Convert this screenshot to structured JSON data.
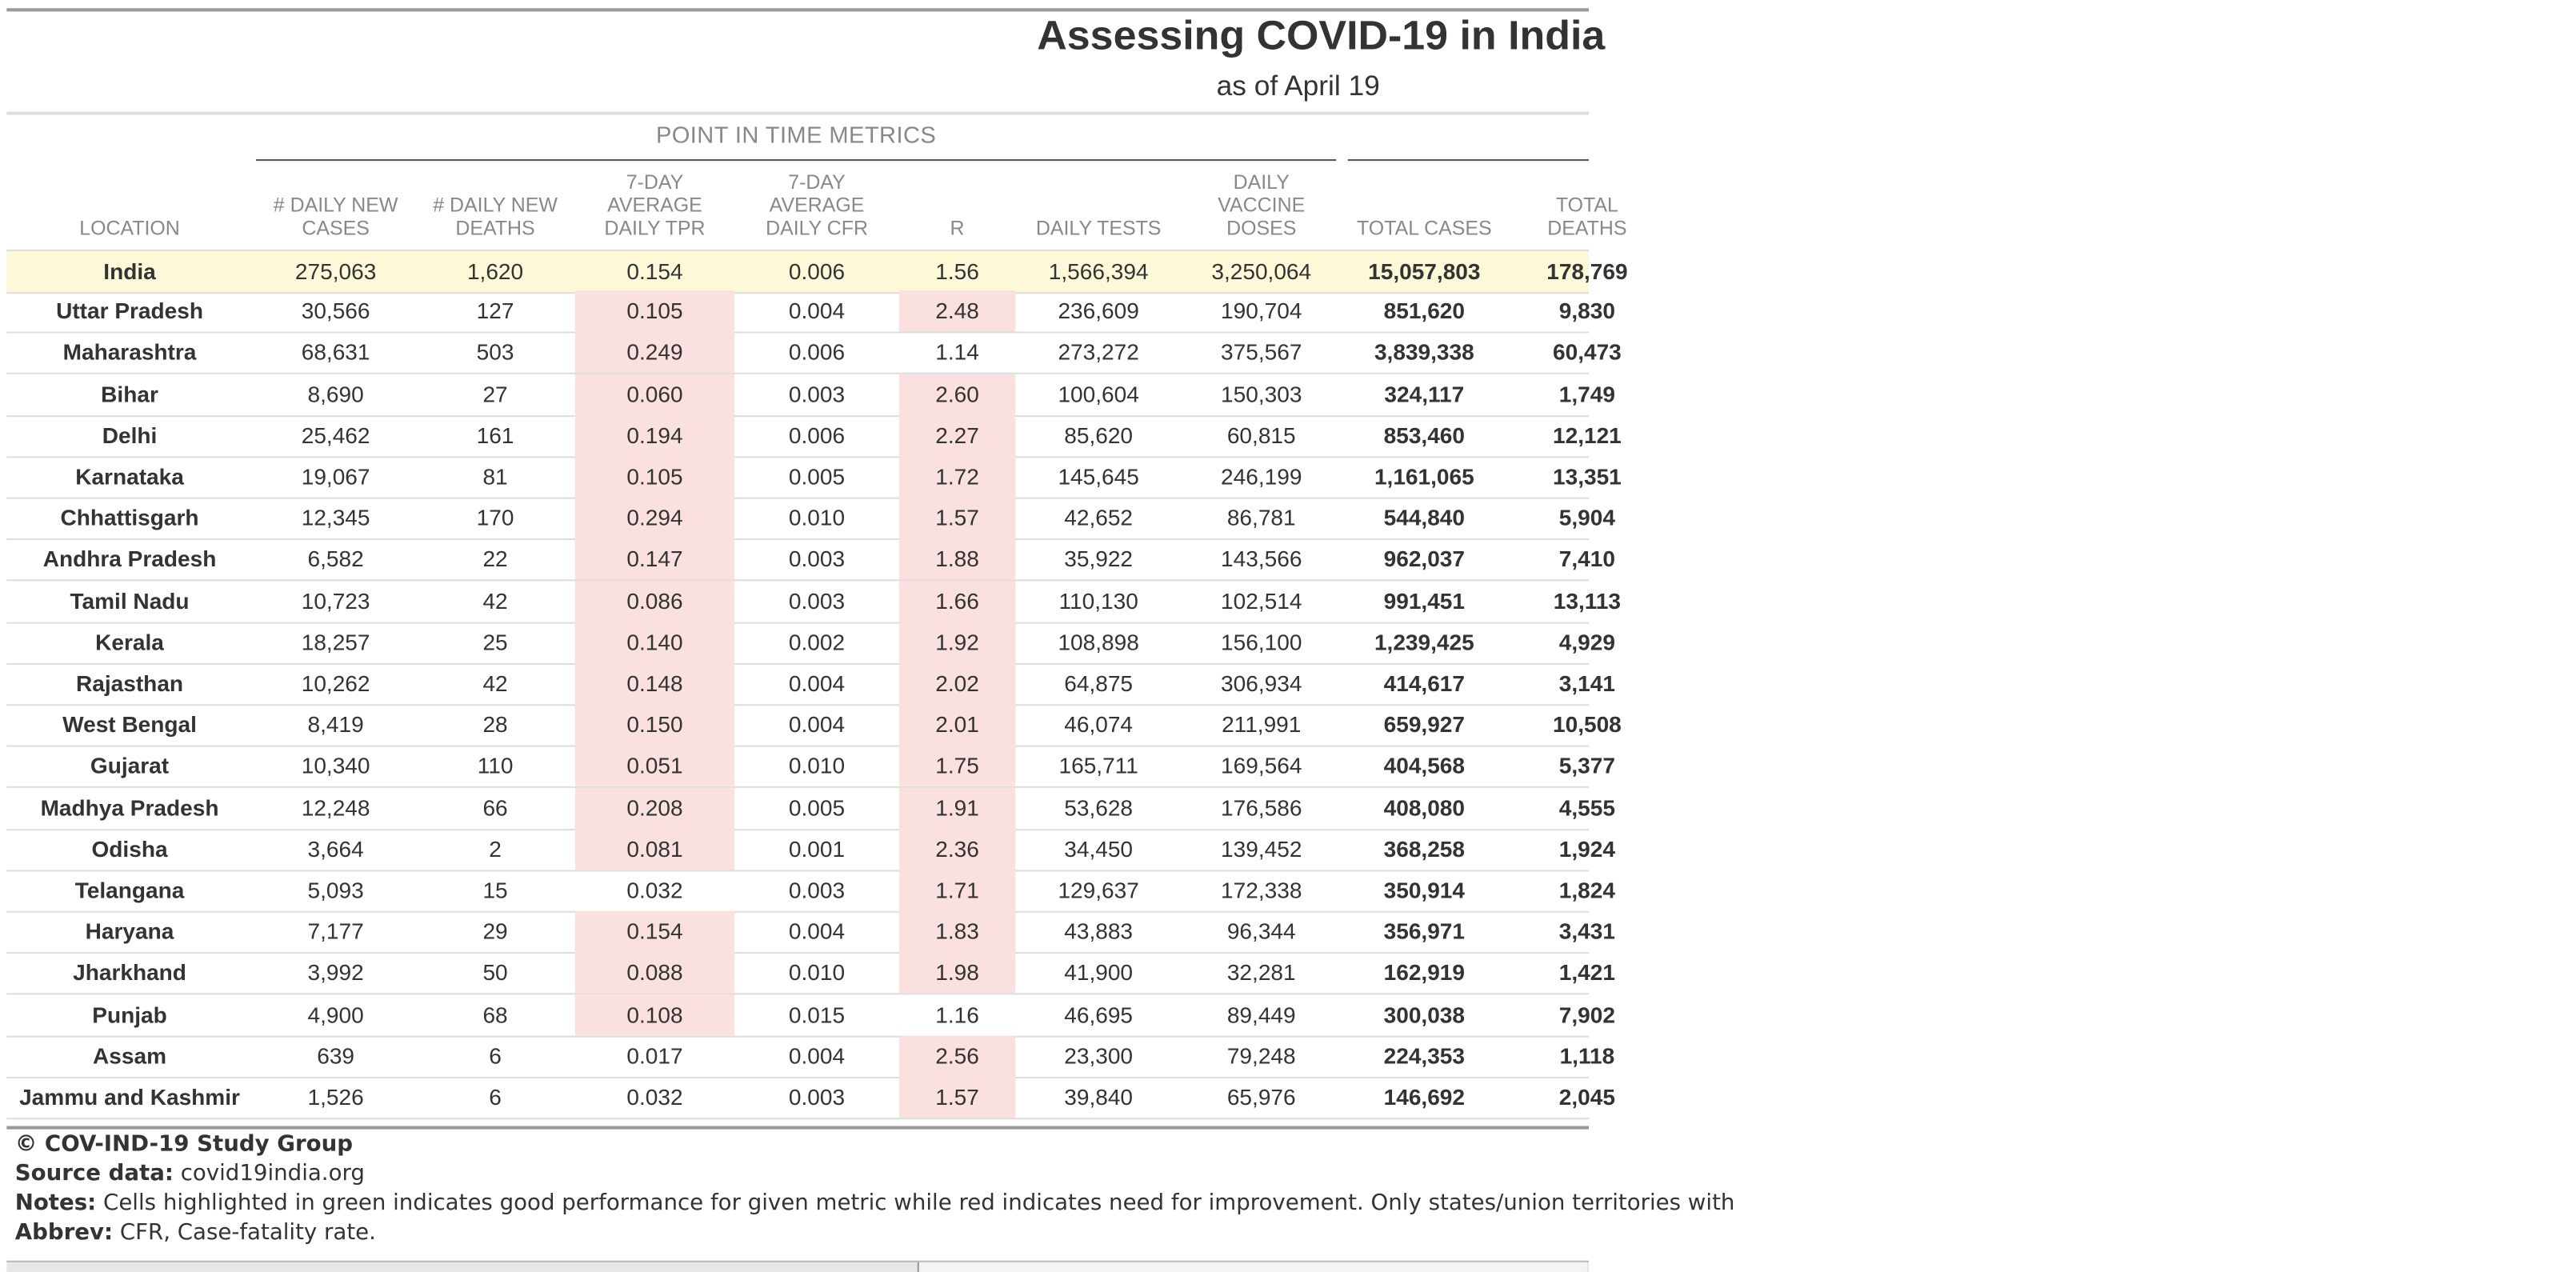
{
  "header": {
    "title": "Assessing COVID-19 in India",
    "subtitle": "as of April 19",
    "section_label": "POINT IN TIME METRICS"
  },
  "columns": [
    "LOCATION",
    "# DAILY NEW\nCASES",
    "# DAILY NEW\nDEATHS",
    "7-DAY\nAVERAGE\nDAILY TPR",
    "7-DAY\nAVERAGE\nDAILY CFR",
    "R",
    "DAILY TESTS",
    "DAILY\nVACCINE\nDOSES",
    "TOTAL CASES",
    "TOTAL\nDEATHS"
  ],
  "rows": [
    {
      "cells": [
        "India",
        "275,063",
        "1,620",
        "0.154",
        "0.006",
        "1.56",
        "1,566,394",
        "3,250,064",
        "15,057,803",
        "178,769"
      ],
      "highlight": true,
      "tpr_red": false,
      "r_red": false
    },
    {
      "cells": [
        "Uttar Pradesh",
        "30,566",
        "127",
        "0.105",
        "0.004",
        "2.48",
        "236,609",
        "190,704",
        "851,620",
        "9,830"
      ],
      "tpr_red": true,
      "r_red": true
    },
    {
      "cells": [
        "Maharashtra",
        "68,631",
        "503",
        "0.249",
        "0.006",
        "1.14",
        "273,272",
        "375,567",
        "3,839,338",
        "60,473"
      ],
      "tpr_red": true,
      "r_red": false
    },
    {
      "cells": [
        "Bihar",
        "8,690",
        "27",
        "0.060",
        "0.003",
        "2.60",
        "100,604",
        "150,303",
        "324,117",
        "1,749"
      ],
      "tpr_red": true,
      "r_red": true
    },
    {
      "cells": [
        "Delhi",
        "25,462",
        "161",
        "0.194",
        "0.006",
        "2.27",
        "85,620",
        "60,815",
        "853,460",
        "12,121"
      ],
      "tpr_red": true,
      "r_red": true
    },
    {
      "cells": [
        "Karnataka",
        "19,067",
        "81",
        "0.105",
        "0.005",
        "1.72",
        "145,645",
        "246,199",
        "1,161,065",
        "13,351"
      ],
      "tpr_red": true,
      "r_red": true
    },
    {
      "cells": [
        "Chhattisgarh",
        "12,345",
        "170",
        "0.294",
        "0.010",
        "1.57",
        "42,652",
        "86,781",
        "544,840",
        "5,904"
      ],
      "tpr_red": true,
      "r_red": true
    },
    {
      "cells": [
        "Andhra Pradesh",
        "6,582",
        "22",
        "0.147",
        "0.003",
        "1.88",
        "35,922",
        "143,566",
        "962,037",
        "7,410"
      ],
      "tpr_red": true,
      "r_red": true
    },
    {
      "cells": [
        "Tamil Nadu",
        "10,723",
        "42",
        "0.086",
        "0.003",
        "1.66",
        "110,130",
        "102,514",
        "991,451",
        "13,113"
      ],
      "tpr_red": true,
      "r_red": true
    },
    {
      "cells": [
        "Kerala",
        "18,257",
        "25",
        "0.140",
        "0.002",
        "1.92",
        "108,898",
        "156,100",
        "1,239,425",
        "4,929"
      ],
      "tpr_red": true,
      "r_red": true
    },
    {
      "cells": [
        "Rajasthan",
        "10,262",
        "42",
        "0.148",
        "0.004",
        "2.02",
        "64,875",
        "306,934",
        "414,617",
        "3,141"
      ],
      "tpr_red": true,
      "r_red": true
    },
    {
      "cells": [
        "West Bengal",
        "8,419",
        "28",
        "0.150",
        "0.004",
        "2.01",
        "46,074",
        "211,991",
        "659,927",
        "10,508"
      ],
      "tpr_red": true,
      "r_red": true
    },
    {
      "cells": [
        "Gujarat",
        "10,340",
        "110",
        "0.051",
        "0.010",
        "1.75",
        "165,711",
        "169,564",
        "404,568",
        "5,377"
      ],
      "tpr_red": true,
      "r_red": true
    },
    {
      "cells": [
        "Madhya Pradesh",
        "12,248",
        "66",
        "0.208",
        "0.005",
        "1.91",
        "53,628",
        "176,586",
        "408,080",
        "4,555"
      ],
      "tpr_red": true,
      "r_red": true
    },
    {
      "cells": [
        "Odisha",
        "3,664",
        "2",
        "0.081",
        "0.001",
        "2.36",
        "34,450",
        "139,452",
        "368,258",
        "1,924"
      ],
      "tpr_red": true,
      "r_red": true
    },
    {
      "cells": [
        "Telangana",
        "5,093",
        "15",
        "0.032",
        "0.003",
        "1.71",
        "129,637",
        "172,338",
        "350,914",
        "1,824"
      ],
      "tpr_red": false,
      "r_red": true
    },
    {
      "cells": [
        "Haryana",
        "7,177",
        "29",
        "0.154",
        "0.004",
        "1.83",
        "43,883",
        "96,344",
        "356,971",
        "3,431"
      ],
      "tpr_red": true,
      "r_red": true
    },
    {
      "cells": [
        "Jharkhand",
        "3,992",
        "50",
        "0.088",
        "0.010",
        "1.98",
        "41,900",
        "32,281",
        "162,919",
        "1,421"
      ],
      "tpr_red": true,
      "r_red": true
    },
    {
      "cells": [
        "Punjab",
        "4,900",
        "68",
        "0.108",
        "0.015",
        "1.16",
        "46,695",
        "89,449",
        "300,038",
        "7,902"
      ],
      "tpr_red": true,
      "r_red": false
    },
    {
      "cells": [
        "Assam",
        "639",
        "6",
        "0.017",
        "0.004",
        "2.56",
        "23,300",
        "79,248",
        "224,353",
        "1,118"
      ],
      "tpr_red": false,
      "r_red": true
    },
    {
      "cells": [
        "Jammu and Kashmir",
        "1,526",
        "6",
        "0.032",
        "0.003",
        "1.57",
        "39,840",
        "65,976",
        "146,692",
        "2,045"
      ],
      "tpr_red": false,
      "r_red": true
    }
  ],
  "footer": {
    "copyright": "© COV-IND-19 Study Group",
    "source_label": "Source data:",
    "source_value": "covid19india.org",
    "notes_label": "Notes:",
    "notes_value": "Cells highlighted in green indicates good performance for given metric while red indicates need for improvement. Only states/union territories with",
    "abbrev_label": "Abbrev:",
    "abbrev_value": "CFR, Case-fatality rate."
  },
  "colors": {
    "red_cell": "#fbe0e0",
    "india_row": "#fcf8d8"
  }
}
